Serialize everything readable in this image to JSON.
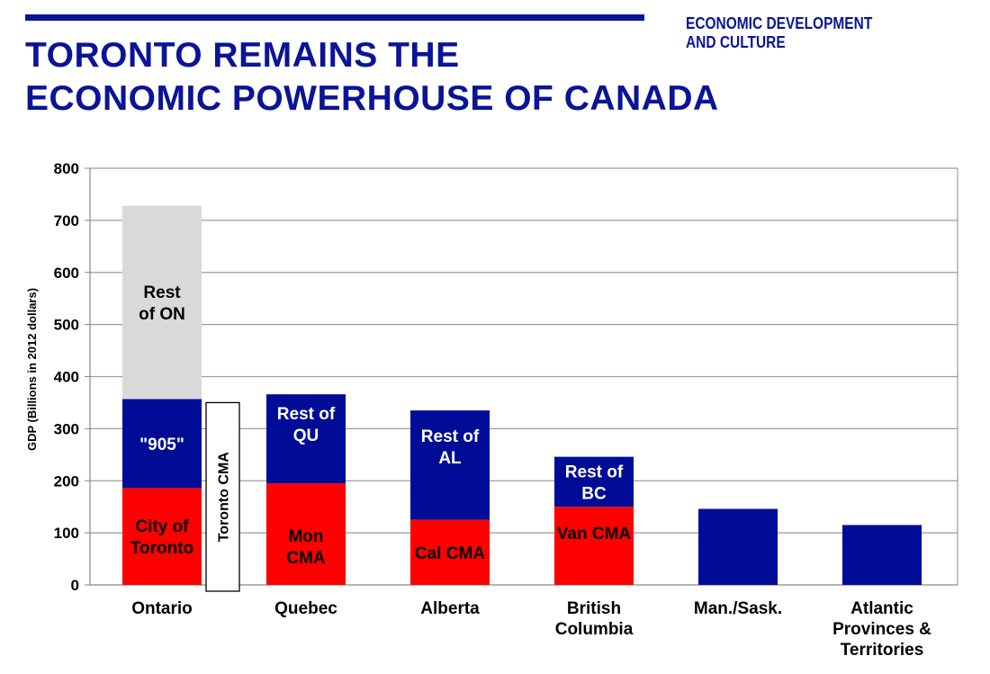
{
  "header": {
    "title_lines": [
      "TORONTO REMAINS THE",
      "ECONOMIC POWERHOUSE OF CANADA"
    ],
    "department_lines": [
      "ECONOMIC DEVELOPMENT",
      "AND CULTURE"
    ]
  },
  "colors": {
    "brand": "#0a1496",
    "red": "#ff0000",
    "blue": "#000c96",
    "grey": "#d9d9d9"
  },
  "chart_data": {
    "type": "bar",
    "stacked": true,
    "ylabel": "GDP (Billions in 2012 dollars)",
    "ylim": [
      0,
      800
    ],
    "yticks": [
      0,
      100,
      200,
      300,
      400,
      500,
      600,
      700,
      800
    ],
    "grid": true,
    "categories": [
      [
        "Ontario"
      ],
      [
        "Quebec"
      ],
      [
        "Alberta"
      ],
      [
        "British",
        "Columbia"
      ],
      [
        "Man./Sask."
      ],
      [
        "Atlantic",
        "Provinces &",
        "Territories"
      ]
    ],
    "bars": [
      {
        "segments": [
          {
            "value": 186,
            "color": "red",
            "label": [
              "City of",
              "Toronto"
            ],
            "label_color": "#000000"
          },
          {
            "value": 171,
            "color": "blue",
            "label": [
              "\"905\""
            ],
            "label_color": "#ffffff"
          },
          {
            "value": 371,
            "color": "grey",
            "label": [
              "Rest",
              "of ON"
            ],
            "label_color": "#000000"
          }
        ]
      },
      {
        "segments": [
          {
            "value": 195,
            "color": "red",
            "label": [
              "Mon",
              "CMA"
            ],
            "label_color": "#000000",
            "label_valign": "low"
          },
          {
            "value": 171,
            "color": "blue",
            "label": [
              "Rest of",
              "QU"
            ],
            "label_color": "#ffffff",
            "label_valign": "upper"
          }
        ]
      },
      {
        "segments": [
          {
            "value": 125,
            "color": "red",
            "label": [
              "Cal CMA"
            ],
            "label_color": "#000000"
          },
          {
            "value": 210,
            "color": "blue",
            "label": [
              "Rest of",
              "AL"
            ],
            "label_color": "#ffffff",
            "label_valign": "upper"
          }
        ]
      },
      {
        "segments": [
          {
            "value": 150,
            "color": "red",
            "label": [
              "Van CMA"
            ],
            "label_color": "#000000",
            "label_valign": "upper"
          },
          {
            "value": 96,
            "color": "blue",
            "label": [
              "Rest of",
              "BC"
            ],
            "label_color": "#ffffff"
          }
        ]
      },
      {
        "segments": [
          {
            "value": 146,
            "color": "blue",
            "label": [],
            "label_color": "#ffffff"
          }
        ]
      },
      {
        "segments": [
          {
            "value": 115,
            "color": "blue",
            "label": [],
            "label_color": "#ffffff"
          }
        ]
      }
    ],
    "annotations": [
      {
        "text": "Toronto CMA",
        "type": "outlined-box",
        "category_index": 0,
        "from": 0,
        "to": 350,
        "rotated": true
      }
    ]
  }
}
